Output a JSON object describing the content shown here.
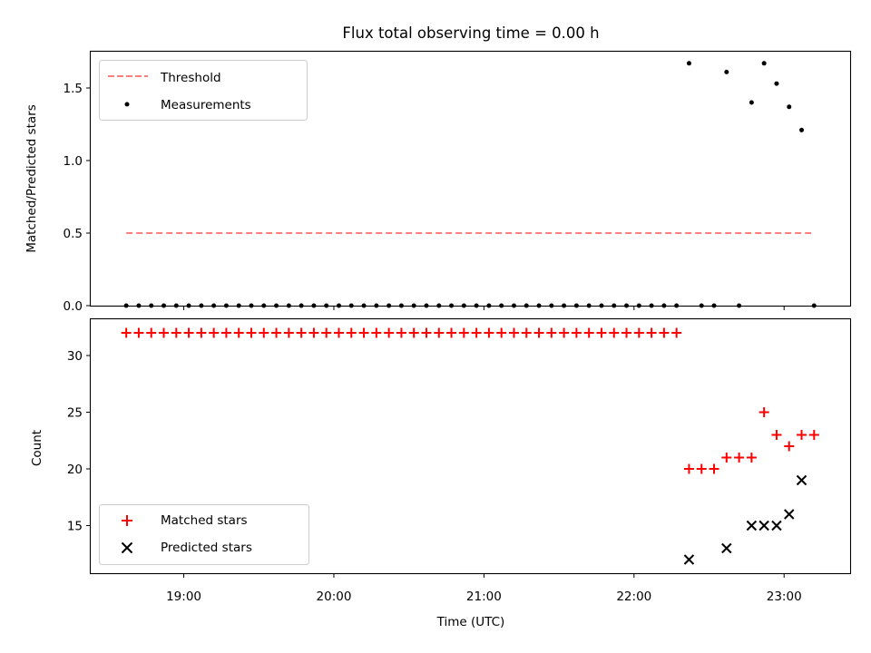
{
  "title": "Flux total observing time = 0.00 h",
  "chart_data": [
    {
      "type": "scatter",
      "ylabel": "Matched/Predicted stars",
      "ylim": [
        0.0,
        1.75
      ],
      "yticks": [
        "0.0",
        "0.5",
        "1.0",
        "1.5"
      ],
      "ytick_values": [
        0.0,
        0.5,
        1.0,
        1.5
      ],
      "xlim_hours": [
        18.38,
        23.44
      ],
      "grid": false,
      "legend_position": "top-left",
      "legend": [
        {
          "label": "Threshold",
          "marker": "dashed-line",
          "color": "#ff7f7f"
        },
        {
          "label": "Measurements",
          "marker": "dot",
          "color": "#000000"
        }
      ],
      "threshold": {
        "value": 0.5,
        "x_start": "18:37",
        "x_end": "23:11",
        "color": "#ff7f7f"
      },
      "series": [
        {
          "name": "Measurements",
          "color": "#000000",
          "x": [
            "18:37",
            "18:42",
            "18:47",
            "18:52",
            "18:57",
            "19:02",
            "19:07",
            "19:12",
            "19:17",
            "19:22",
            "19:27",
            "19:32",
            "19:37",
            "19:42",
            "19:47",
            "19:52",
            "19:57",
            "20:02",
            "20:07",
            "20:12",
            "20:17",
            "20:22",
            "20:27",
            "20:32",
            "20:37",
            "20:42",
            "20:47",
            "20:52",
            "20:57",
            "21:02",
            "21:07",
            "21:12",
            "21:17",
            "21:22",
            "21:27",
            "21:32",
            "21:37",
            "21:42",
            "21:47",
            "21:52",
            "21:57",
            "22:02",
            "22:07",
            "22:12",
            "22:17",
            "22:22",
            "22:27",
            "22:32",
            "22:37",
            "22:42",
            "22:47",
            "22:52",
            "22:57",
            "23:02",
            "23:07",
            "23:12"
          ],
          "y": [
            0,
            0,
            0,
            0,
            0,
            0,
            0,
            0,
            0,
            0,
            0,
            0,
            0,
            0,
            0,
            0,
            0,
            0,
            0,
            0,
            0,
            0,
            0,
            0,
            0,
            0,
            0,
            0,
            0,
            0,
            0,
            0,
            0,
            0,
            0,
            0,
            0,
            0,
            0,
            0,
            0,
            0,
            0,
            0,
            0,
            1.67,
            0,
            0,
            1.61,
            0,
            1.4,
            1.67,
            1.53,
            1.37,
            1.21,
            0
          ]
        }
      ]
    },
    {
      "type": "scatter",
      "ylabel": "Count",
      "xlabel": "Time (UTC)",
      "ylim": [
        10.8,
        33.2
      ],
      "yticks": [
        "15",
        "20",
        "25",
        "30"
      ],
      "ytick_values": [
        15,
        20,
        25,
        30
      ],
      "xticks": [
        "19:00",
        "20:00",
        "21:00",
        "22:00",
        "23:00"
      ],
      "xtick_hours": [
        19,
        20,
        21,
        22,
        23
      ],
      "xlim_hours": [
        18.38,
        23.44
      ],
      "grid": false,
      "legend_position": "bottom-left",
      "legend": [
        {
          "label": "Matched stars",
          "marker": "plus",
          "color": "#ff0000"
        },
        {
          "label": "Predicted stars",
          "marker": "x",
          "color": "#000000"
        }
      ],
      "series": [
        {
          "name": "Matched stars",
          "color": "#ff0000",
          "x": [
            "18:37",
            "18:42",
            "18:47",
            "18:52",
            "18:57",
            "19:02",
            "19:07",
            "19:12",
            "19:17",
            "19:22",
            "19:27",
            "19:32",
            "19:37",
            "19:42",
            "19:47",
            "19:52",
            "19:57",
            "20:02",
            "20:07",
            "20:12",
            "20:17",
            "20:22",
            "20:27",
            "20:32",
            "20:37",
            "20:42",
            "20:47",
            "20:52",
            "20:57",
            "21:02",
            "21:07",
            "21:12",
            "21:17",
            "21:22",
            "21:27",
            "21:32",
            "21:37",
            "21:42",
            "21:47",
            "21:52",
            "21:57",
            "22:02",
            "22:07",
            "22:12",
            "22:17",
            "22:22",
            "22:27",
            "22:32",
            "22:37",
            "22:42",
            "22:47",
            "22:52",
            "22:57",
            "23:02",
            "23:07",
            "23:12"
          ],
          "y": [
            32,
            32,
            32,
            32,
            32,
            32,
            32,
            32,
            32,
            32,
            32,
            32,
            32,
            32,
            32,
            32,
            32,
            32,
            32,
            32,
            32,
            32,
            32,
            32,
            32,
            32,
            32,
            32,
            32,
            32,
            32,
            32,
            32,
            32,
            32,
            32,
            32,
            32,
            32,
            32,
            32,
            32,
            32,
            32,
            32,
            20,
            20,
            20,
            21,
            21,
            21,
            25,
            23,
            22,
            23,
            23
          ]
        },
        {
          "name": "Predicted stars",
          "color": "#000000",
          "x": [
            "22:22",
            "22:37",
            "22:47",
            "22:52",
            "22:57",
            "23:02",
            "23:07"
          ],
          "y": [
            12,
            13,
            15,
            15,
            15,
            16,
            19
          ]
        }
      ]
    }
  ]
}
